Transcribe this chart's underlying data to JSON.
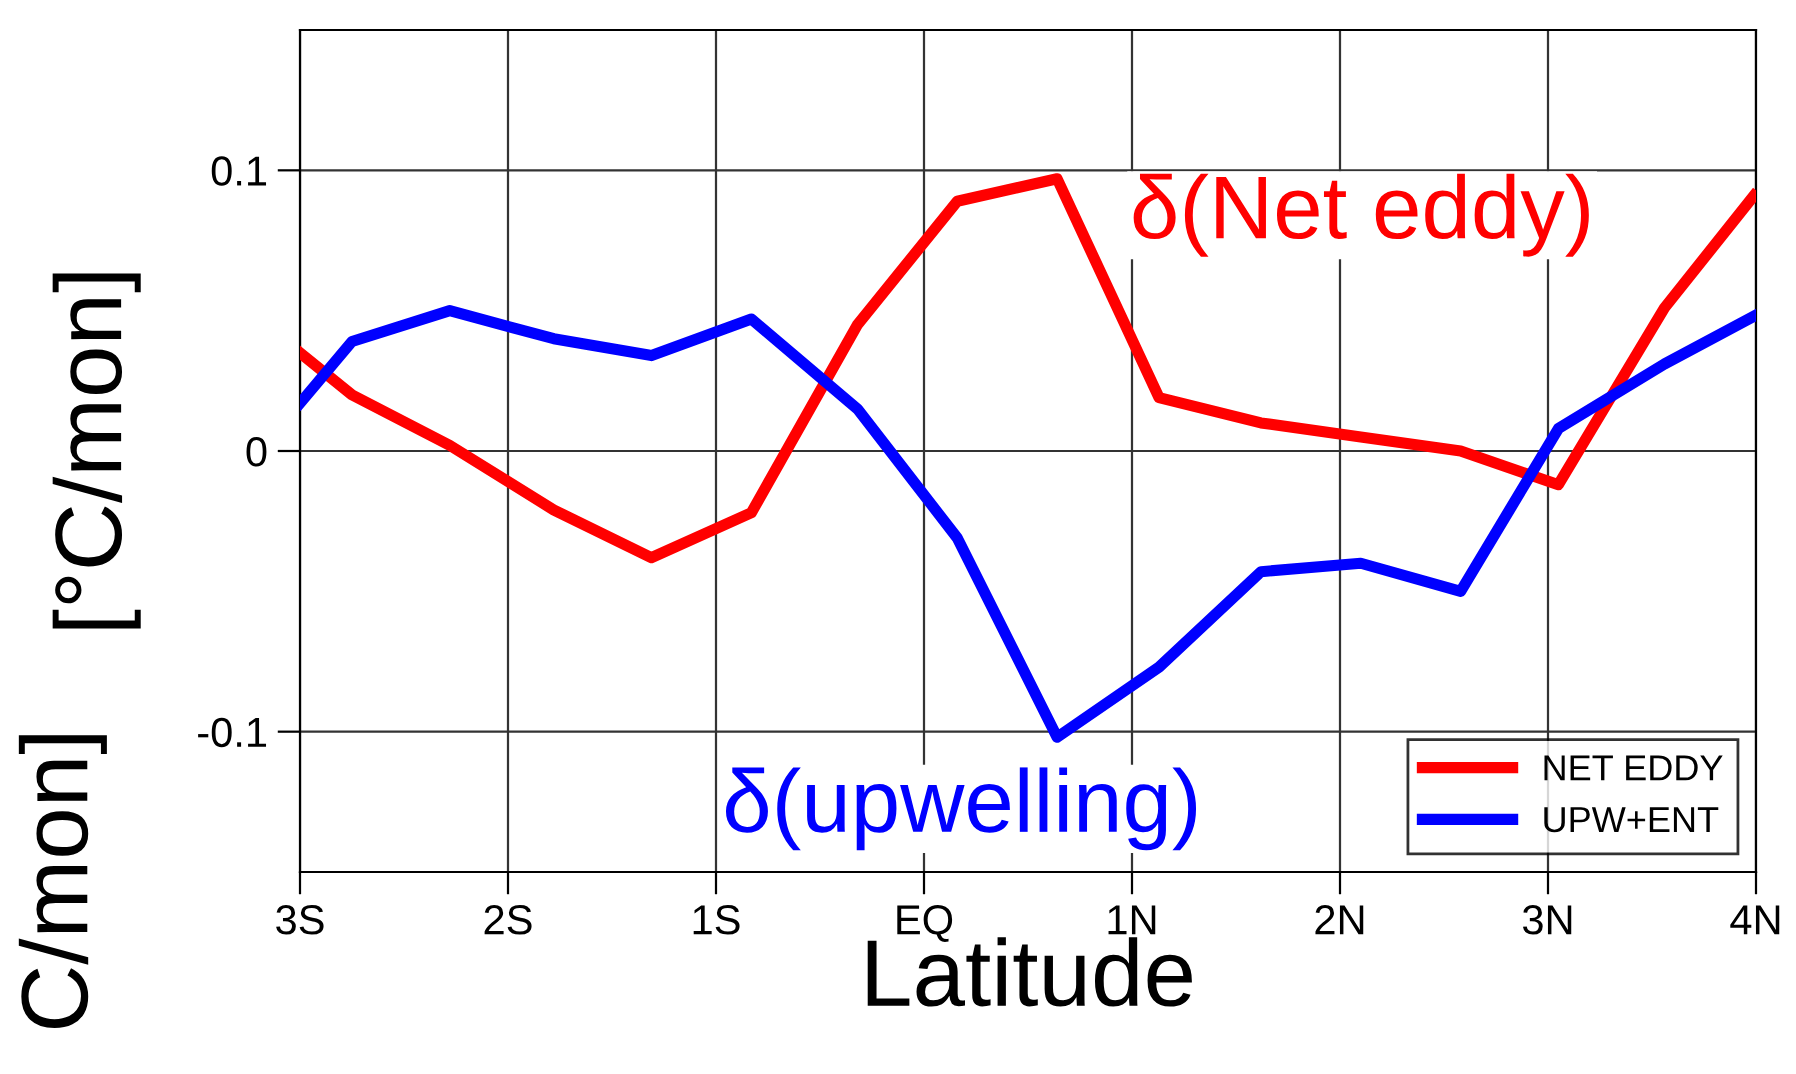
{
  "chart_data": {
    "type": "line",
    "xlabel": "Latitude",
    "ylabel": "[°C/mon]",
    "x": [
      -3.0,
      -2.75,
      -2.28,
      -1.78,
      -1.31,
      -0.83,
      -0.32,
      0.16,
      0.64,
      1.13,
      1.62,
      2.1,
      2.58,
      3.05,
      3.56,
      3.99
    ],
    "series": [
      {
        "name": "NET EDDY",
        "color": "#ff0000",
        "values": [
          0.035,
          0.02,
          0.002,
          -0.021,
          -0.038,
          -0.022,
          0.045,
          0.089,
          0.097,
          0.019,
          0.01,
          0.005,
          0.0,
          -0.012,
          0.051,
          0.091
        ]
      },
      {
        "name": "UPW+ENT",
        "color": "#0000ff",
        "values": [
          0.017,
          0.039,
          0.05,
          0.04,
          0.034,
          0.047,
          0.015,
          -0.031,
          -0.102,
          -0.077,
          -0.043,
          -0.04,
          -0.05,
          0.008,
          0.031,
          0.048
        ]
      }
    ],
    "xlim": [
      -3,
      4
    ],
    "xticks": [
      {
        "value": -3,
        "label": "3S"
      },
      {
        "value": -2,
        "label": "2S"
      },
      {
        "value": -1,
        "label": "1S"
      },
      {
        "value": 0,
        "label": "EQ"
      },
      {
        "value": 1,
        "label": "1N"
      },
      {
        "value": 2,
        "label": "2N"
      },
      {
        "value": 3,
        "label": "3N"
      },
      {
        "value": 4,
        "label": "4N"
      }
    ],
    "ylim": [
      -0.15,
      0.15
    ],
    "yticks": [
      {
        "value": -0.1,
        "label": "-0.1"
      },
      0,
      0.1
    ],
    "grid": true,
    "legend": "bottom right",
    "line_style": "solid",
    "marker": "none",
    "annotations": [
      "δ(Net eddy)",
      "δ(upwelling)",
      "C/mon]"
    ]
  }
}
